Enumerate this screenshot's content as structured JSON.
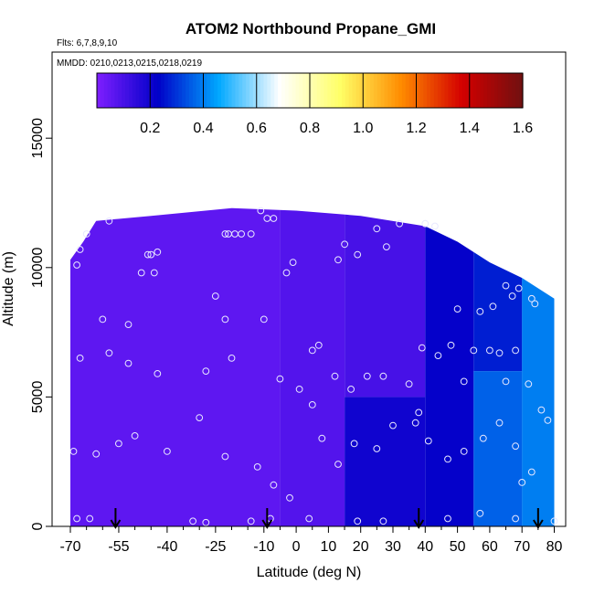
{
  "chart_data": {
    "type": "heatmap",
    "title": "ATOM2 Northbound Propane_GMI",
    "flights_label": "Flts: 6,7,8,9,10",
    "dates_label": "MMDD: 0210,0213,0215,0218,0219",
    "xlabel": "Latitude (deg N)",
    "ylabel": "Altitude (m)",
    "xlim": [
      -70,
      84
    ],
    "ylim": [
      0,
      17500
    ],
    "x_ticks": [
      -70,
      -55,
      -40,
      -25,
      -10,
      0,
      10,
      20,
      30,
      40,
      50,
      60,
      70,
      80
    ],
    "x_tick_labels": [
      "-70",
      "-55",
      "-40",
      "-25",
      "-10",
      "0",
      "10",
      "20",
      "30",
      "40",
      "50",
      "60",
      "70",
      "80"
    ],
    "x_minor_ticks": [
      -65,
      -60,
      -50,
      -45,
      -35,
      -30,
      -20,
      -15,
      -5,
      5,
      15,
      25,
      35,
      45,
      55,
      65,
      75
    ],
    "y_ticks": [
      0,
      5000,
      10000,
      15000
    ],
    "y_tick_labels": [
      "0",
      "5000",
      "10000",
      "15000"
    ],
    "colorbar": {
      "min": 0.0,
      "max": 1.6,
      "ticks": [
        0.2,
        0.4,
        0.6,
        0.8,
        1.0,
        1.2,
        1.4,
        1.6
      ],
      "tick_labels": [
        "0.2",
        "0.4",
        "0.6",
        "0.8",
        "1.0",
        "1.2",
        "1.4",
        "1.6"
      ],
      "colors": [
        "#7f1fff",
        "#0000c8",
        "#00a8ff",
        "#ffffff",
        "#ffff66",
        "#ff8c00",
        "#d40000",
        "#701010"
      ]
    },
    "field": {
      "lat_range": [
        -70,
        80
      ],
      "alt_range": [
        0,
        12500
      ],
      "ceiling": [
        [
          -70,
          10300
        ],
        [
          -66,
          11000
        ],
        [
          -62,
          11800
        ],
        [
          -45,
          12000
        ],
        [
          -20,
          12300
        ],
        [
          0,
          12200
        ],
        [
          20,
          12000
        ],
        [
          40,
          11600
        ],
        [
          50,
          11000
        ],
        [
          60,
          10200
        ],
        [
          70,
          9600
        ],
        [
          80,
          8800
        ]
      ],
      "regions": [
        {
          "lat": [
            -70,
            -5
          ],
          "alt": [
            0,
            12500
          ],
          "value": 0.06
        },
        {
          "lat": [
            -5,
            15
          ],
          "alt": [
            0,
            12500
          ],
          "value": 0.08
        },
        {
          "lat": [
            15,
            40
          ],
          "alt": [
            5000,
            12500
          ],
          "value": 0.1
        },
        {
          "lat": [
            15,
            40
          ],
          "alt": [
            0,
            5000
          ],
          "value": 0.2
        },
        {
          "lat": [
            40,
            55
          ],
          "alt": [
            0,
            12500
          ],
          "value": 0.22
        },
        {
          "lat": [
            55,
            70
          ],
          "alt": [
            6000,
            12500
          ],
          "value": 0.27
        },
        {
          "lat": [
            55,
            70
          ],
          "alt": [
            0,
            6000
          ],
          "value": 0.36
        },
        {
          "lat": [
            70,
            80
          ],
          "alt": [
            0,
            12500
          ],
          "value": 0.4
        }
      ]
    },
    "sample_points": [
      [
        -68,
        10100
      ],
      [
        -67,
        10700
      ],
      [
        -65,
        11300
      ],
      [
        -58,
        11800
      ],
      [
        -46,
        10500
      ],
      [
        -45,
        10500
      ],
      [
        -43,
        10600
      ],
      [
        -22,
        11300
      ],
      [
        -21,
        11300
      ],
      [
        -19,
        11300
      ],
      [
        -17,
        11300
      ],
      [
        -14,
        11300
      ],
      [
        -9,
        11900
      ],
      [
        -7,
        11900
      ],
      [
        -60,
        8000
      ],
      [
        -52,
        7800
      ],
      [
        -48,
        9800
      ],
      [
        -44,
        9800
      ],
      [
        -25,
        8900
      ],
      [
        -22,
        8000
      ],
      [
        -10,
        8000
      ],
      [
        -3,
        9800
      ],
      [
        -1,
        10200
      ],
      [
        13,
        10300
      ],
      [
        15,
        10900
      ],
      [
        19,
        10500
      ],
      [
        25,
        11500
      ],
      [
        28,
        10800
      ],
      [
        32,
        11700
      ],
      [
        40,
        11700
      ],
      [
        43,
        11600
      ],
      [
        50,
        8400
      ],
      [
        57,
        8300
      ],
      [
        61,
        8500
      ],
      [
        65,
        9300
      ],
      [
        67,
        8900
      ],
      [
        69,
        9200
      ],
      [
        73,
        8800
      ],
      [
        74,
        8600
      ],
      [
        -67,
        6500
      ],
      [
        -58,
        6700
      ],
      [
        -52,
        6300
      ],
      [
        -43,
        5900
      ],
      [
        -28,
        6000
      ],
      [
        -20,
        6500
      ],
      [
        -5,
        5700
      ],
      [
        1,
        5300
      ],
      [
        5,
        6800
      ],
      [
        7,
        7000
      ],
      [
        12,
        5800
      ],
      [
        17,
        5300
      ],
      [
        22,
        5800
      ],
      [
        27,
        5800
      ],
      [
        35,
        5500
      ],
      [
        38,
        4400
      ],
      [
        39,
        6900
      ],
      [
        44,
        6600
      ],
      [
        48,
        7000
      ],
      [
        52,
        5600
      ],
      [
        55,
        6800
      ],
      [
        60,
        6800
      ],
      [
        63,
        6700
      ],
      [
        65,
        5600
      ],
      [
        68,
        6800
      ],
      [
        72,
        5500
      ],
      [
        -69,
        2900
      ],
      [
        -62,
        2800
      ],
      [
        -55,
        3200
      ],
      [
        -50,
        3500
      ],
      [
        -40,
        2900
      ],
      [
        -30,
        4200
      ],
      [
        -22,
        2700
      ],
      [
        -12,
        2300
      ],
      [
        -7,
        1600
      ],
      [
        -2,
        1100
      ],
      [
        5,
        4700
      ],
      [
        8,
        3400
      ],
      [
        13,
        2400
      ],
      [
        18,
        3200
      ],
      [
        25,
        3000
      ],
      [
        30,
        3900
      ],
      [
        37,
        4000
      ],
      [
        41,
        3300
      ],
      [
        47,
        2600
      ],
      [
        52,
        2900
      ],
      [
        58,
        3400
      ],
      [
        63,
        4000
      ],
      [
        68,
        3100
      ],
      [
        70,
        1700
      ],
      [
        73,
        2100
      ],
      [
        76,
        4500
      ],
      [
        78,
        4100
      ],
      [
        -68,
        300
      ],
      [
        -64,
        300
      ],
      [
        -32,
        200
      ],
      [
        -28,
        150
      ],
      [
        -14,
        200
      ],
      [
        -8,
        300
      ],
      [
        4,
        300
      ],
      [
        19,
        200
      ],
      [
        27,
        200
      ],
      [
        47,
        300
      ],
      [
        57,
        500
      ],
      [
        68,
        300
      ],
      [
        80,
        200
      ],
      [
        -11,
        12200
      ]
    ],
    "arrows_lat": [
      -56,
      -9,
      38,
      75
    ]
  }
}
